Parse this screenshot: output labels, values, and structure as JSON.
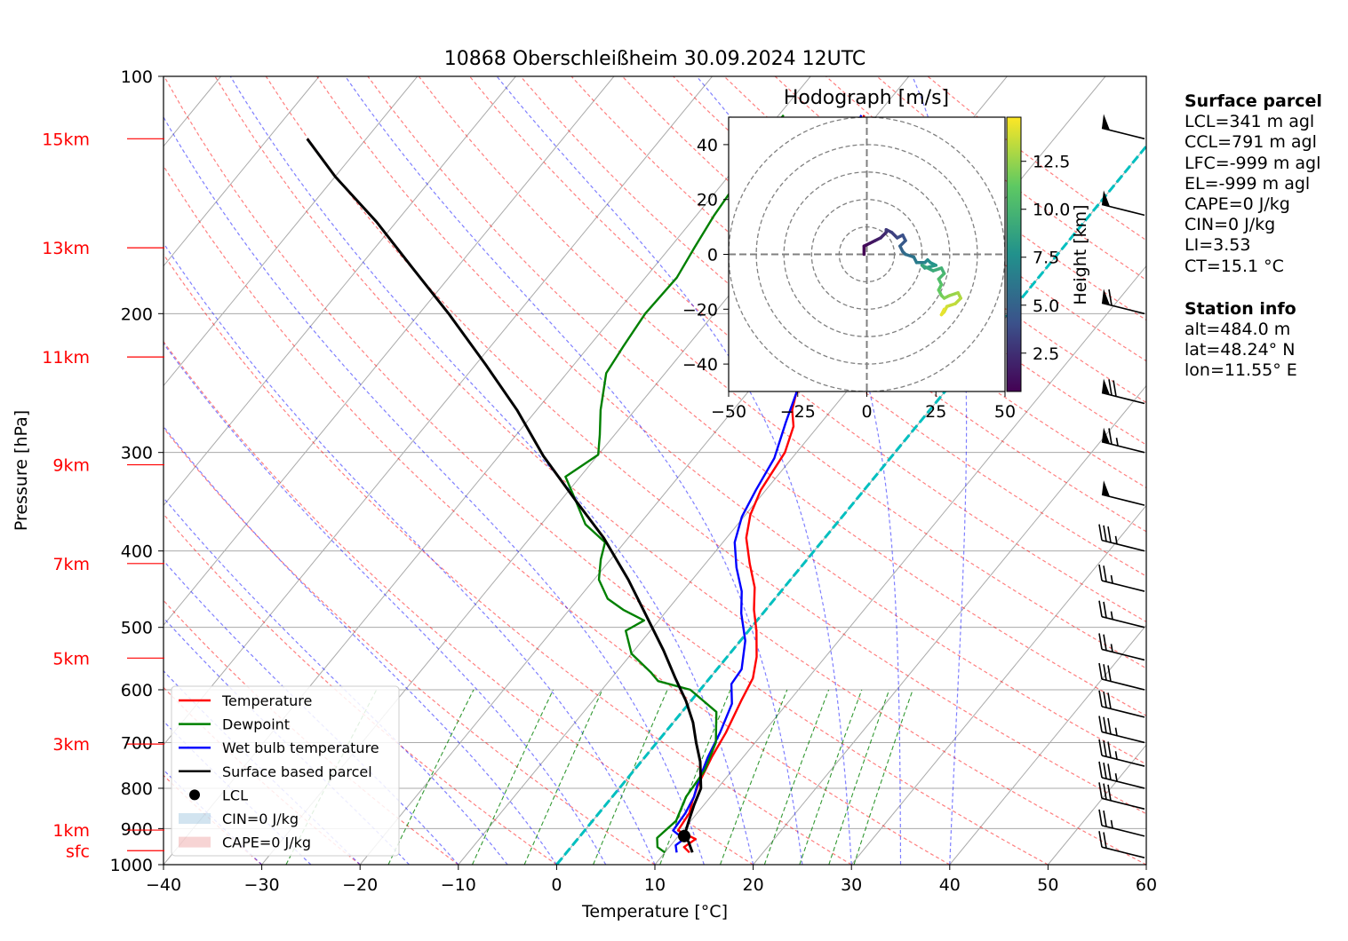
{
  "chart_data": {
    "type": "skew-t",
    "title": "10868 Oberschleißheim 30.09.2024 12UTC",
    "xlabel": "Temperature [°C]",
    "ylabel": "Pressure [hPa]",
    "xlim": [
      -40,
      60
    ],
    "ylim": [
      1000,
      100
    ],
    "x_ticks": [
      -40,
      -30,
      -20,
      -10,
      0,
      10,
      20,
      30,
      40,
      50,
      60
    ],
    "y_ticks": [
      100,
      200,
      300,
      400,
      500,
      600,
      700,
      800,
      900,
      1000
    ],
    "height_labels": [
      {
        "label": "sfc",
        "p": 960
      },
      {
        "label": "1km",
        "p": 904
      },
      {
        "label": "3km",
        "p": 703
      },
      {
        "label": "5km",
        "p": 547
      },
      {
        "label": "7km",
        "p": 415
      },
      {
        "label": "9km",
        "p": 311
      },
      {
        "label": "11km",
        "p": 227
      },
      {
        "label": "13km",
        "p": 165
      },
      {
        "label": "15km",
        "p": 120
      }
    ],
    "legend": {
      "placement": "lower-left",
      "entries": [
        "Temperature",
        "Dewpoint",
        "Wet bulb temperature",
        "Surface based parcel",
        "LCL",
        "CIN=0 J/kg",
        "CAPE=0 J/kg"
      ]
    },
    "colors": {
      "temperature": "#ff0000",
      "dewpoint": "#008000",
      "wetbulb": "#0000ff",
      "parcel": "#000000",
      "isotherm0": "#00bfbf",
      "cin": "#1f77b4",
      "cape": "#d62728"
    },
    "series": [
      {
        "name": "Temperature",
        "points": [
          [
            12.5,
            965
          ],
          [
            11.5,
            950
          ],
          [
            12,
            928
          ],
          [
            9.5,
            905
          ],
          [
            9.2,
            860
          ],
          [
            8.5,
            830
          ],
          [
            7.7,
            790
          ],
          [
            6.8,
            730
          ],
          [
            6.2,
            680
          ],
          [
            5.1,
            620
          ],
          [
            4.4,
            580
          ],
          [
            3,
            545
          ],
          [
            0.8,
            505
          ],
          [
            -1.2,
            475
          ],
          [
            -3,
            445
          ],
          [
            -5.5,
            415
          ],
          [
            -8,
            385
          ],
          [
            -9.5,
            360
          ],
          [
            -10.5,
            335
          ],
          [
            -11.2,
            300
          ],
          [
            -12.5,
            278
          ],
          [
            -14,
            265
          ],
          [
            -16,
            240
          ],
          [
            -19.5,
            215
          ],
          [
            -21.8,
            200
          ],
          [
            -22.7,
            185
          ],
          [
            -24.5,
            170
          ],
          [
            -26.6,
            155
          ],
          [
            -28.5,
            135
          ],
          [
            -30.6,
            117
          ],
          [
            -31.3,
            112
          ]
        ]
      },
      {
        "name": "Wet bulb temperature",
        "points": [
          [
            11.2,
            965
          ],
          [
            10.5,
            945
          ],
          [
            10.8,
            928
          ],
          [
            9,
            905
          ],
          [
            8.8,
            860
          ],
          [
            8.3,
            820
          ],
          [
            7.6,
            790
          ],
          [
            6.4,
            730
          ],
          [
            5.6,
            680
          ],
          [
            4.4,
            625
          ],
          [
            2.7,
            590
          ],
          [
            2.5,
            565
          ],
          [
            0.5,
            520
          ],
          [
            -2.2,
            480
          ],
          [
            -4,
            450
          ],
          [
            -6.5,
            420
          ],
          [
            -8.8,
            390
          ],
          [
            -10.2,
            362
          ],
          [
            -11,
            335
          ],
          [
            -11.8,
            305
          ],
          [
            -13.6,
            275
          ],
          [
            -14.2,
            265
          ],
          [
            -15.8,
            240
          ],
          [
            -19.8,
            215
          ],
          [
            -22,
            200
          ],
          [
            -23,
            185
          ],
          [
            -24.7,
            170
          ],
          [
            -26.8,
            155
          ],
          [
            -28.8,
            135
          ],
          [
            -30.9,
            117
          ],
          [
            -31.6,
            112
          ]
        ]
      },
      {
        "name": "Dewpoint",
        "points": [
          [
            10,
            965
          ],
          [
            8.8,
            950
          ],
          [
            8,
            925
          ],
          [
            8.5,
            880
          ],
          [
            7.5,
            820
          ],
          [
            7.2,
            760
          ],
          [
            6,
            700
          ],
          [
            3.5,
            640
          ],
          [
            -1,
            600
          ],
          [
            -5,
            585
          ],
          [
            -6.5,
            570
          ],
          [
            -10,
            540
          ],
          [
            -12.5,
            505
          ],
          [
            -11.5,
            490
          ],
          [
            -14.5,
            475
          ],
          [
            -17,
            460
          ],
          [
            -19.5,
            435
          ],
          [
            -21,
            410
          ],
          [
            -22,
            390
          ],
          [
            -25.5,
            370
          ],
          [
            -28.5,
            345
          ],
          [
            -31.5,
            322
          ],
          [
            -30,
            302
          ],
          [
            -31.5,
            285
          ],
          [
            -33.5,
            265
          ],
          [
            -36,
            238
          ],
          [
            -36.5,
            220
          ],
          [
            -37,
            200
          ],
          [
            -36.8,
            180
          ],
          [
            -37.5,
            165
          ],
          [
            -38.2,
            150
          ],
          [
            -38.5,
            140
          ],
          [
            -39,
            130
          ],
          [
            -39.6,
            120
          ],
          [
            -39.5,
            112
          ]
        ]
      },
      {
        "name": "Surface based parcel",
        "points": [
          [
            12.8,
            965
          ],
          [
            11.5,
            935
          ],
          [
            10.6,
            920
          ],
          [
            9.8,
            880
          ],
          [
            9,
            840
          ],
          [
            8.3,
            800
          ],
          [
            6,
            740
          ],
          [
            4,
            700
          ],
          [
            2,
            660
          ],
          [
            -0.5,
            620
          ],
          [
            -3.5,
            580
          ],
          [
            -7,
            535
          ],
          [
            -11.5,
            485
          ],
          [
            -16.5,
            435
          ],
          [
            -22.5,
            385
          ],
          [
            -28.5,
            345
          ],
          [
            -35.5,
            303
          ],
          [
            -42,
            265
          ],
          [
            -49,
            232
          ],
          [
            -57,
            200
          ],
          [
            -64.5,
            175
          ],
          [
            -72,
            153
          ],
          [
            -80,
            134
          ],
          [
            -86,
            120
          ]
        ]
      }
    ],
    "lcl": {
      "t": 10.6,
      "p": 920
    },
    "wind_barbs": [
      {
        "p": 980,
        "speed_kt": 20
      },
      {
        "p": 920,
        "speed_kt": 25
      },
      {
        "p": 850,
        "speed_kt": 30
      },
      {
        "p": 800,
        "speed_kt": 35
      },
      {
        "p": 750,
        "speed_kt": 35
      },
      {
        "p": 700,
        "speed_kt": 35
      },
      {
        "p": 650,
        "speed_kt": 30
      },
      {
        "p": 600,
        "speed_kt": 30
      },
      {
        "p": 550,
        "speed_kt": 25
      },
      {
        "p": 500,
        "speed_kt": 25
      },
      {
        "p": 450,
        "speed_kt": 25
      },
      {
        "p": 400,
        "speed_kt": 35
      },
      {
        "p": 350,
        "speed_kt": 50
      },
      {
        "p": 300,
        "speed_kt": 65
      },
      {
        "p": 260,
        "speed_kt": 70
      },
      {
        "p": 200,
        "speed_kt": 60
      },
      {
        "p": 150,
        "speed_kt": 50
      },
      {
        "p": 120,
        "speed_kt": 50
      }
    ],
    "hodograph": {
      "title": "Hodograph [m/s]",
      "xlim": [
        -50,
        50
      ],
      "ylim": [
        -50,
        50
      ],
      "x_ticks": [
        -50,
        -25,
        0,
        25,
        50
      ],
      "y_ticks": [
        -40,
        -20,
        0,
        20,
        40
      ],
      "colorbar_label": "Height [km]",
      "colorbar_ticks": [
        2.5,
        5.0,
        7.5,
        10.0,
        12.5
      ],
      "height_range": [
        0.5,
        14.8
      ],
      "points": [
        [
          -1,
          0,
          0.5
        ],
        [
          -1,
          3,
          0.9
        ],
        [
          1,
          4,
          1.3
        ],
        [
          3,
          5,
          1.7
        ],
        [
          5,
          6,
          2.1
        ],
        [
          7,
          8,
          2.5
        ],
        [
          7,
          9,
          2.9
        ],
        [
          9,
          8,
          3.3
        ],
        [
          11,
          6,
          3.7
        ],
        [
          13,
          7,
          4.1
        ],
        [
          14,
          5,
          4.5
        ],
        [
          12,
          3,
          4.9
        ],
        [
          13,
          1,
          5.3
        ],
        [
          14,
          0,
          5.7
        ],
        [
          17,
          -1,
          6.1
        ],
        [
          18,
          -3,
          6.5
        ],
        [
          21,
          -3,
          6.9
        ],
        [
          22,
          -2,
          7.3
        ],
        [
          23,
          -3,
          7.7
        ],
        [
          25,
          -4,
          8.1
        ],
        [
          21,
          -5,
          8.5
        ],
        [
          20,
          -4,
          8.9
        ],
        [
          24,
          -6,
          9.3
        ],
        [
          27,
          -5,
          9.7
        ],
        [
          28,
          -7,
          10.1
        ],
        [
          26,
          -9,
          10.5
        ],
        [
          27,
          -11,
          10.9
        ],
        [
          26,
          -13,
          11.3
        ],
        [
          27,
          -15,
          11.7
        ],
        [
          28,
          -16,
          12.1
        ],
        [
          30,
          -15,
          12.5
        ],
        [
          33,
          -14,
          12.9
        ],
        [
          34,
          -16,
          13.2
        ],
        [
          32,
          -18,
          13.5
        ],
        [
          29,
          -19,
          13.8
        ],
        [
          28,
          -21,
          14.1
        ],
        [
          27,
          -22,
          14.3
        ],
        [
          28,
          -20,
          14.6
        ]
      ]
    }
  },
  "info": {
    "surface_title": "Surface parcel",
    "surface": [
      "LCL=341 m agl",
      "CCL=791 m agl",
      "LFC=-999 m agl",
      "EL=-999 m agl",
      "CAPE=0 J/kg",
      "CIN=0 J/kg",
      "LI=3.53",
      "CT=15.1 °C"
    ],
    "station_title": "Station info",
    "station": [
      "alt=484.0 m",
      "lat=48.24° N",
      "lon=11.55° E"
    ]
  }
}
